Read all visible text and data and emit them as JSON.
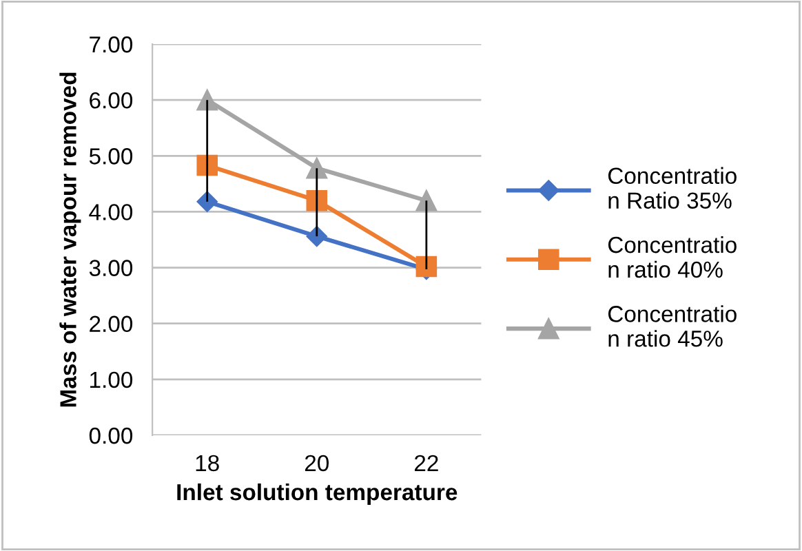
{
  "chart_data": {
    "type": "line",
    "xlabel": "Inlet solution temperature",
    "ylabel": "Mass of water vapour removed",
    "categories": [
      "18",
      "20",
      "22"
    ],
    "series": [
      {
        "name": "Concentration Ratio 35%",
        "color": "#4472c4",
        "marker": "diamond",
        "values": [
          4.18,
          3.56,
          2.97
        ],
        "errors": [
          [
            4.18,
            6.0
          ],
          [
            3.56,
            4.78
          ],
          [
            2.97,
            4.2
          ]
        ]
      },
      {
        "name": "Concentration ratio 40%",
        "color": "#ed7d31",
        "marker": "square",
        "values": [
          4.83,
          4.2,
          3.02
        ]
      },
      {
        "name": "Concentration ratio 45%",
        "color": "#a5a5a5",
        "marker": "triangle",
        "values": [
          6.0,
          4.78,
          4.2
        ]
      }
    ],
    "ylim": [
      0,
      7
    ],
    "yticks": [
      {
        "value": 0,
        "label": "0.00"
      },
      {
        "value": 1,
        "label": "1.00"
      },
      {
        "value": 2,
        "label": "2.00"
      },
      {
        "value": 3,
        "label": "3.00"
      },
      {
        "value": 4,
        "label": "4.00"
      },
      {
        "value": 5,
        "label": "5.00"
      },
      {
        "value": 6,
        "label": "6.00"
      },
      {
        "value": 7,
        "label": "7.00"
      }
    ],
    "grid": "y",
    "legend": "right"
  }
}
